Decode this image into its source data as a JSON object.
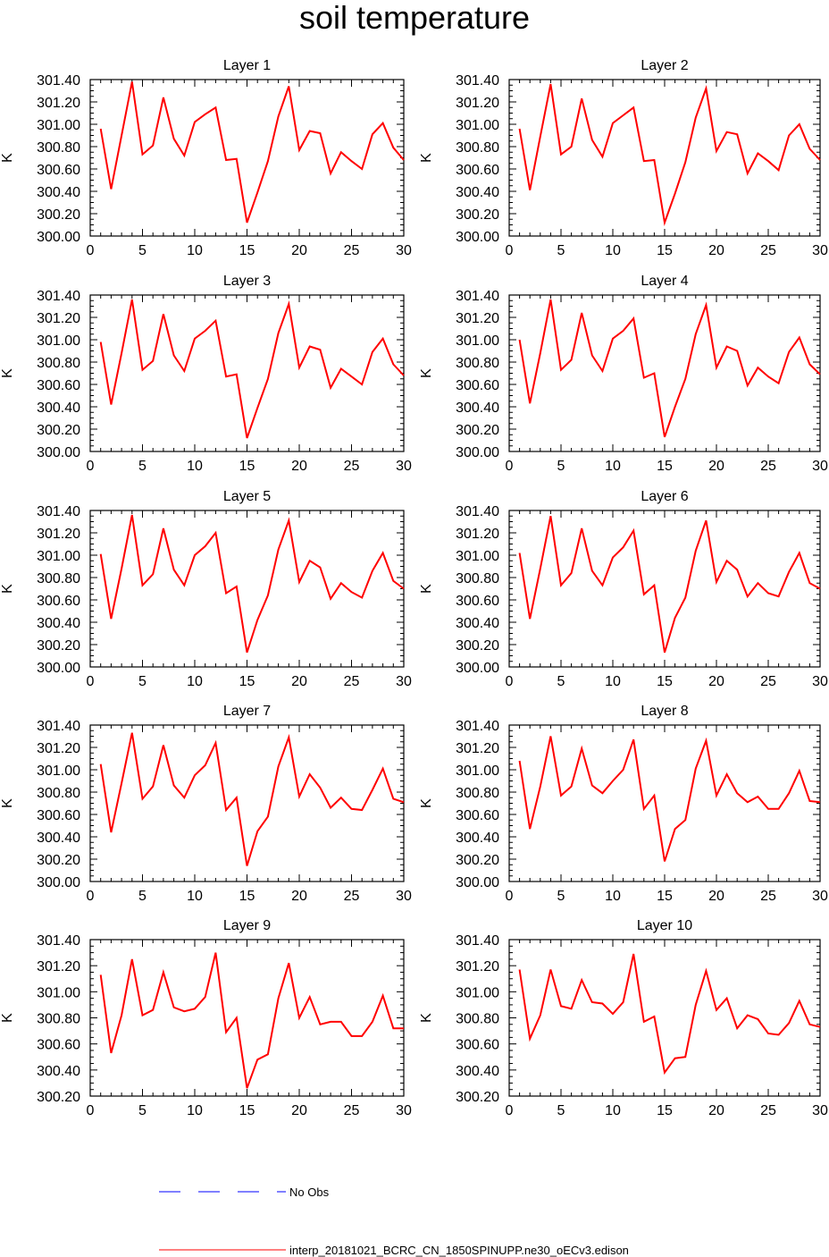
{
  "figure": {
    "title": "soil temperature"
  },
  "colors": {
    "model": "#ff0000",
    "obs": "#0000ff",
    "axis": "#000000"
  },
  "legend": [
    {
      "style": "dashed",
      "color_key": "obs",
      "label": "No Obs"
    },
    {
      "style": "solid",
      "color_key": "model",
      "label": "interp_20181021_BCRC_CN_1850SPINUPP.ne30_oECv3.edison"
    }
  ],
  "chart_data": [
    {
      "type": "line",
      "title": "Layer 1",
      "xlabel": "",
      "ylabel": "K",
      "xlim": [
        0,
        30
      ],
      "ylim": [
        300.0,
        301.4
      ],
      "xticks": [
        "0",
        "5",
        "10",
        "15",
        "20",
        "25",
        "30"
      ],
      "yticks": [
        "300.00",
        "300.20",
        "300.40",
        "300.60",
        "300.80",
        "301.00",
        "301.20",
        "301.40"
      ],
      "x": [
        1,
        2,
        3,
        4,
        5,
        6,
        7,
        8,
        9,
        10,
        11,
        12,
        13,
        14,
        15,
        16,
        17,
        18,
        19,
        20,
        21,
        22,
        23,
        24,
        25,
        26,
        27,
        28,
        29,
        30
      ],
      "series": [
        {
          "name": "interp_20181021_BCRC_CN_1850SPINUPP.ne30_oECv3.edison",
          "values": [
            300.96,
            300.42,
            300.9,
            301.38,
            300.73,
            300.81,
            301.24,
            300.87,
            300.72,
            301.02,
            301.09,
            301.15,
            300.68,
            300.69,
            300.12,
            300.39,
            300.67,
            301.07,
            301.34,
            300.77,
            300.94,
            300.92,
            300.56,
            300.75,
            300.67,
            300.6,
            300.91,
            301.01,
            300.79,
            300.68
          ]
        }
      ]
    },
    {
      "type": "line",
      "title": "Layer 2",
      "xlabel": "",
      "ylabel": "K",
      "xlim": [
        0,
        30
      ],
      "ylim": [
        300.0,
        301.4
      ],
      "xticks": [
        "0",
        "5",
        "10",
        "15",
        "20",
        "25",
        "30"
      ],
      "yticks": [
        "300.00",
        "300.20",
        "300.40",
        "300.60",
        "300.80",
        "301.00",
        "301.20",
        "301.40"
      ],
      "x": [
        1,
        2,
        3,
        4,
        5,
        6,
        7,
        8,
        9,
        10,
        11,
        12,
        13,
        14,
        15,
        16,
        17,
        18,
        19,
        20,
        21,
        22,
        23,
        24,
        25,
        26,
        27,
        28,
        29,
        30
      ],
      "series": [
        {
          "name": "interp_20181021_BCRC_CN_1850SPINUPP.ne30_oECv3.edison",
          "values": [
            300.96,
            300.41,
            300.89,
            301.36,
            300.73,
            300.8,
            301.23,
            300.86,
            300.71,
            301.01,
            301.08,
            301.15,
            300.67,
            300.68,
            300.12,
            300.38,
            300.66,
            301.06,
            301.32,
            300.76,
            300.93,
            300.91,
            300.56,
            300.74,
            300.67,
            300.59,
            300.9,
            301.0,
            300.78,
            300.68
          ]
        }
      ]
    },
    {
      "type": "line",
      "title": "Layer 3",
      "xlabel": "",
      "ylabel": "K",
      "xlim": [
        0,
        30
      ],
      "ylim": [
        300.0,
        301.4
      ],
      "xticks": [
        "0",
        "5",
        "10",
        "15",
        "20",
        "25",
        "30"
      ],
      "yticks": [
        "300.00",
        "300.20",
        "300.40",
        "300.60",
        "300.80",
        "301.00",
        "301.20",
        "301.40"
      ],
      "x": [
        1,
        2,
        3,
        4,
        5,
        6,
        7,
        8,
        9,
        10,
        11,
        12,
        13,
        14,
        15,
        16,
        17,
        18,
        19,
        20,
        21,
        22,
        23,
        24,
        25,
        26,
        27,
        28,
        29,
        30
      ],
      "series": [
        {
          "name": "interp_20181021_BCRC_CN_1850SPINUPP.ne30_oECv3.edison",
          "values": [
            300.98,
            300.42,
            300.88,
            301.36,
            300.73,
            300.81,
            301.23,
            300.86,
            300.72,
            301.01,
            301.08,
            301.17,
            300.67,
            300.69,
            300.12,
            300.39,
            300.65,
            301.06,
            301.32,
            300.75,
            300.94,
            300.91,
            300.57,
            300.74,
            300.67,
            300.6,
            300.89,
            301.01,
            300.78,
            300.68
          ]
        }
      ]
    },
    {
      "type": "line",
      "title": "Layer 4",
      "xlabel": "",
      "ylabel": "K",
      "xlim": [
        0,
        30
      ],
      "ylim": [
        300.0,
        301.4
      ],
      "xticks": [
        "0",
        "5",
        "10",
        "15",
        "20",
        "25",
        "30"
      ],
      "yticks": [
        "300.00",
        "300.20",
        "300.40",
        "300.60",
        "300.80",
        "301.00",
        "301.20",
        "301.40"
      ],
      "x": [
        1,
        2,
        3,
        4,
        5,
        6,
        7,
        8,
        9,
        10,
        11,
        12,
        13,
        14,
        15,
        16,
        17,
        18,
        19,
        20,
        21,
        22,
        23,
        24,
        25,
        26,
        27,
        28,
        29,
        30
      ],
      "series": [
        {
          "name": "interp_20181021_BCRC_CN_1850SPINUPP.ne30_oECv3.edison",
          "values": [
            301.0,
            300.43,
            300.88,
            301.36,
            300.73,
            300.82,
            301.24,
            300.86,
            300.72,
            301.01,
            301.08,
            301.19,
            300.66,
            300.7,
            300.13,
            300.4,
            300.65,
            301.05,
            301.31,
            300.75,
            300.94,
            300.9,
            300.59,
            300.75,
            300.67,
            300.61,
            300.89,
            301.02,
            300.78,
            300.69
          ]
        }
      ]
    },
    {
      "type": "line",
      "title": "Layer 5",
      "xlabel": "",
      "ylabel": "K",
      "xlim": [
        0,
        30
      ],
      "ylim": [
        300.0,
        301.4
      ],
      "xticks": [
        "0",
        "5",
        "10",
        "15",
        "20",
        "25",
        "30"
      ],
      "yticks": [
        "300.00",
        "300.20",
        "300.40",
        "300.60",
        "300.80",
        "301.00",
        "301.20",
        "301.40"
      ],
      "x": [
        1,
        2,
        3,
        4,
        5,
        6,
        7,
        8,
        9,
        10,
        11,
        12,
        13,
        14,
        15,
        16,
        17,
        18,
        19,
        20,
        21,
        22,
        23,
        24,
        25,
        26,
        27,
        28,
        29,
        30
      ],
      "series": [
        {
          "name": "interp_20181021_BCRC_CN_1850SPINUPP.ne30_oECv3.edison",
          "values": [
            301.01,
            300.43,
            300.88,
            301.36,
            300.73,
            300.83,
            301.24,
            300.87,
            300.73,
            301.0,
            301.08,
            301.2,
            300.66,
            300.72,
            300.13,
            300.42,
            300.64,
            301.05,
            301.31,
            300.76,
            300.95,
            300.89,
            300.61,
            300.75,
            300.67,
            300.62,
            300.86,
            301.02,
            300.77,
            300.7
          ]
        }
      ]
    },
    {
      "type": "line",
      "title": "Layer 6",
      "xlabel": "",
      "ylabel": "K",
      "xlim": [
        0,
        30
      ],
      "ylim": [
        300.0,
        301.4
      ],
      "xticks": [
        "0",
        "5",
        "10",
        "15",
        "20",
        "25",
        "30"
      ],
      "yticks": [
        "300.00",
        "300.20",
        "300.40",
        "300.60",
        "300.80",
        "301.00",
        "301.20",
        "301.40"
      ],
      "x": [
        1,
        2,
        3,
        4,
        5,
        6,
        7,
        8,
        9,
        10,
        11,
        12,
        13,
        14,
        15,
        16,
        17,
        18,
        19,
        20,
        21,
        22,
        23,
        24,
        25,
        26,
        27,
        28,
        29,
        30
      ],
      "series": [
        {
          "name": "interp_20181021_BCRC_CN_1850SPINUPP.ne30_oECv3.edison",
          "values": [
            301.02,
            300.43,
            300.88,
            301.35,
            300.73,
            300.84,
            301.24,
            300.86,
            300.73,
            300.98,
            301.07,
            301.22,
            300.65,
            300.73,
            300.13,
            300.44,
            300.62,
            301.04,
            301.31,
            300.76,
            300.95,
            300.87,
            300.63,
            300.75,
            300.66,
            300.63,
            300.85,
            301.02,
            300.75,
            300.7
          ]
        }
      ]
    },
    {
      "type": "line",
      "title": "Layer 7",
      "xlabel": "",
      "ylabel": "K",
      "xlim": [
        0,
        30
      ],
      "ylim": [
        300.0,
        301.4
      ],
      "xticks": [
        "0",
        "5",
        "10",
        "15",
        "20",
        "25",
        "30"
      ],
      "yticks": [
        "300.00",
        "300.20",
        "300.40",
        "300.60",
        "300.80",
        "301.00",
        "301.20",
        "301.40"
      ],
      "x": [
        1,
        2,
        3,
        4,
        5,
        6,
        7,
        8,
        9,
        10,
        11,
        12,
        13,
        14,
        15,
        16,
        17,
        18,
        19,
        20,
        21,
        22,
        23,
        24,
        25,
        26,
        27,
        28,
        29,
        30
      ],
      "series": [
        {
          "name": "interp_20181021_BCRC_CN_1850SPINUPP.ne30_oECv3.edison",
          "values": [
            301.05,
            300.44,
            300.88,
            301.33,
            300.74,
            300.85,
            301.22,
            300.86,
            300.75,
            300.95,
            301.04,
            301.24,
            300.64,
            300.75,
            300.14,
            300.45,
            300.58,
            301.03,
            301.29,
            300.76,
            300.96,
            300.84,
            300.66,
            300.75,
            300.65,
            300.64,
            300.82,
            301.01,
            300.74,
            300.71
          ]
        }
      ]
    },
    {
      "type": "line",
      "title": "Layer 8",
      "xlabel": "",
      "ylabel": "K",
      "xlim": [
        0,
        30
      ],
      "ylim": [
        300.0,
        301.4
      ],
      "xticks": [
        "0",
        "5",
        "10",
        "15",
        "20",
        "25",
        "30"
      ],
      "yticks": [
        "300.00",
        "300.20",
        "300.40",
        "300.60",
        "300.80",
        "301.00",
        "301.20",
        "301.40"
      ],
      "x": [
        1,
        2,
        3,
        4,
        5,
        6,
        7,
        8,
        9,
        10,
        11,
        12,
        13,
        14,
        15,
        16,
        17,
        18,
        19,
        20,
        21,
        22,
        23,
        24,
        25,
        26,
        27,
        28,
        29,
        30
      ],
      "series": [
        {
          "name": "interp_20181021_BCRC_CN_1850SPINUPP.ne30_oECv3.edison",
          "values": [
            301.08,
            300.47,
            300.85,
            301.3,
            300.77,
            300.85,
            301.19,
            300.86,
            300.79,
            300.9,
            301.0,
            301.27,
            300.65,
            300.77,
            300.18,
            300.47,
            300.55,
            301.01,
            301.26,
            300.77,
            300.96,
            300.79,
            300.71,
            300.76,
            300.65,
            300.65,
            300.79,
            300.99,
            300.72,
            300.71
          ]
        }
      ]
    },
    {
      "type": "line",
      "title": "Layer 9",
      "xlabel": "",
      "ylabel": "K",
      "xlim": [
        0,
        30
      ],
      "ylim": [
        300.2,
        301.4
      ],
      "xticks": [
        "0",
        "5",
        "10",
        "15",
        "20",
        "25",
        "30"
      ],
      "yticks": [
        "300.20",
        "300.40",
        "300.60",
        "300.80",
        "301.00",
        "301.20",
        "301.40"
      ],
      "x": [
        1,
        2,
        3,
        4,
        5,
        6,
        7,
        8,
        9,
        10,
        11,
        12,
        13,
        14,
        15,
        16,
        17,
        18,
        19,
        20,
        21,
        22,
        23,
        24,
        25,
        26,
        27,
        28,
        29,
        30
      ],
      "series": [
        {
          "name": "interp_20181021_BCRC_CN_1850SPINUPP.ne30_oECv3.edison",
          "values": [
            301.13,
            300.53,
            300.82,
            301.25,
            300.82,
            300.86,
            301.15,
            300.88,
            300.85,
            300.87,
            300.96,
            301.3,
            300.69,
            300.8,
            300.26,
            300.48,
            300.52,
            300.95,
            301.22,
            300.8,
            300.96,
            300.75,
            300.77,
            300.77,
            300.66,
            300.66,
            300.77,
            300.97,
            300.72,
            300.72
          ]
        }
      ]
    },
    {
      "type": "line",
      "title": "Layer 10",
      "xlabel": "",
      "ylabel": "K",
      "xlim": [
        0,
        30
      ],
      "ylim": [
        300.2,
        301.4
      ],
      "xticks": [
        "0",
        "5",
        "10",
        "15",
        "20",
        "25",
        "30"
      ],
      "yticks": [
        "300.20",
        "300.40",
        "300.60",
        "300.80",
        "301.00",
        "301.20",
        "301.40"
      ],
      "x": [
        1,
        2,
        3,
        4,
        5,
        6,
        7,
        8,
        9,
        10,
        11,
        12,
        13,
        14,
        15,
        16,
        17,
        18,
        19,
        20,
        21,
        22,
        23,
        24,
        25,
        26,
        27,
        28,
        29,
        30
      ],
      "series": [
        {
          "name": "interp_20181021_BCRC_CN_1850SPINUPP.ne30_oECv3.edison",
          "values": [
            301.17,
            300.64,
            300.82,
            301.17,
            300.89,
            300.87,
            301.09,
            300.92,
            300.91,
            300.83,
            300.92,
            301.29,
            300.77,
            300.81,
            300.38,
            300.49,
            300.5,
            300.9,
            301.16,
            300.86,
            300.95,
            300.72,
            300.82,
            300.79,
            300.68,
            300.67,
            300.76,
            300.93,
            300.75,
            300.73
          ]
        }
      ]
    }
  ]
}
